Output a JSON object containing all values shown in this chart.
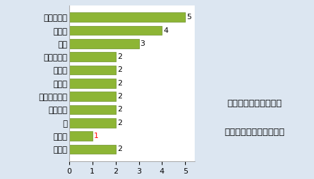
{
  "categories": [
    "ドラえもん",
    "のび太",
    "静香",
    "ジャイアン",
    "スネ夫",
    "出木杉",
    "スネ夫のママ",
    "おじさん",
    "男",
    "はる夫",
    "その他"
  ],
  "values": [
    5,
    4,
    3,
    2,
    2,
    2,
    2,
    2,
    2,
    1,
    2
  ],
  "bar_color": "#8db535",
  "bar_edge_color": "#6a8f28",
  "background_color": "#dce6f1",
  "plot_bg_color": "#ffffff",
  "xlim": [
    0,
    5.4
  ],
  "xticks": [
    0,
    1,
    2,
    3,
    4,
    5
  ],
  "annotation_color_default": "#000000",
  "annotation_color_special": "#ff0000",
  "special_index": 9,
  "legend_text_line1": "野比家窓以外における",
  "legend_text_line2": "キャラ別投棄回数（回）",
  "legend_fontsize": 9.5,
  "tick_fontsize": 8,
  "label_fontsize": 8.5,
  "value_fontsize": 8
}
